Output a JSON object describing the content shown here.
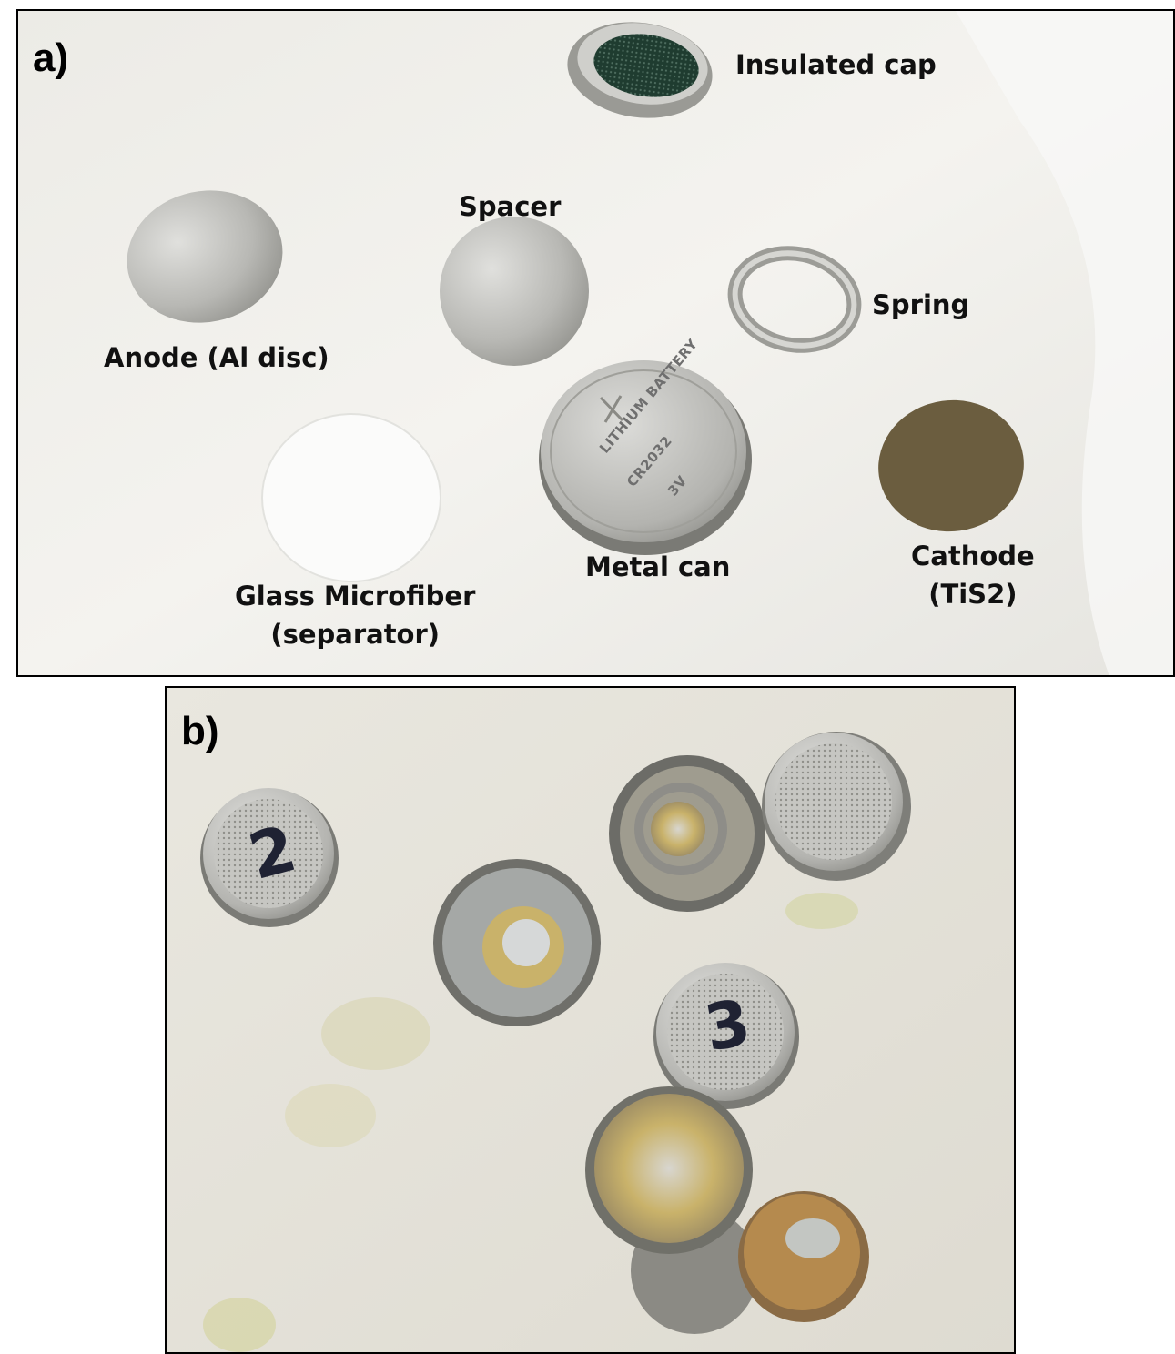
{
  "panel_a": {
    "letter": "a)",
    "labels": {
      "insulated_cap": "Insulated cap",
      "spacer": "Spacer",
      "spring": "Spring",
      "anode": "Anode (Al disc)",
      "metal_can": "Metal can",
      "glass_line1": "Glass Microfiber",
      "glass_line2": "(separator)",
      "cathode_line1": "Cathode",
      "cathode_line2": "(TiS2)"
    },
    "coin_printing": {
      "line1": "LITHIUM BATTERY",
      "line2": "CR2032",
      "line3": "3V"
    }
  },
  "panel_b": {
    "letter": "b)",
    "markings": {
      "cell_left": "2",
      "cell_middle": "3"
    }
  },
  "colors": {
    "border": "#000000",
    "metal": "#b9b9b6",
    "cathode": "#6b5d3f",
    "corrosion": "#c9b26a"
  }
}
